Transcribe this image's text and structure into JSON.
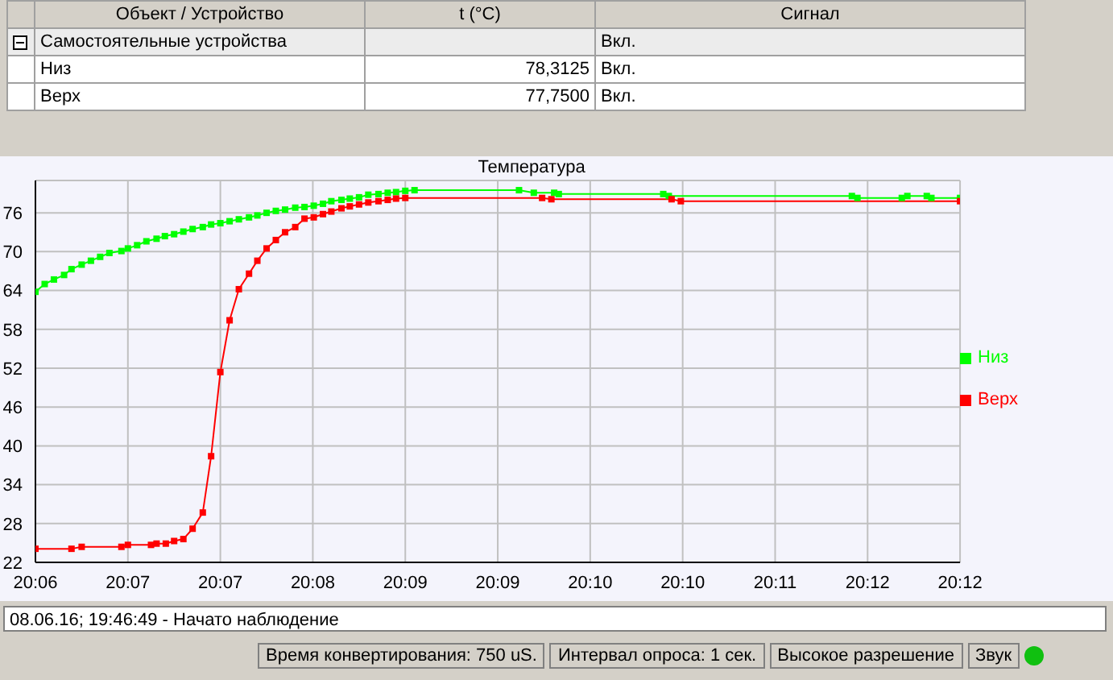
{
  "chart_data": {
    "type": "line",
    "title": "Температура",
    "xlim": [
      20.1033,
      20.2033
    ],
    "xticks": [
      {
        "value": 20.1033,
        "label": "20:06"
      },
      {
        "value": 20.1133,
        "label": "20:07"
      },
      {
        "value": 20.1233,
        "label": "20:07"
      },
      {
        "value": 20.1333,
        "label": "20:08"
      },
      {
        "value": 20.1433,
        "label": "20:09"
      },
      {
        "value": 20.1533,
        "label": "20:09"
      },
      {
        "value": 20.1633,
        "label": "20:10"
      },
      {
        "value": 20.1733,
        "label": "20:10"
      },
      {
        "value": 20.1833,
        "label": "20:11"
      },
      {
        "value": 20.1933,
        "label": "20:12"
      },
      {
        "value": 20.2033,
        "label": "20:12"
      }
    ],
    "ylim": [
      22,
      81
    ],
    "yticks": [
      22,
      28,
      34,
      40,
      46,
      52,
      58,
      64,
      70,
      76
    ],
    "grid": true,
    "legend": "right",
    "marker": "square",
    "line_style": "solid",
    "series": [
      {
        "name": "Низ",
        "color": "#00ff00",
        "x": [
          20.1033,
          20.1043,
          20.1053,
          20.1064,
          20.1072,
          20.1083,
          20.1093,
          20.1103,
          20.1113,
          20.1126,
          20.1133,
          20.1143,
          20.1153,
          20.1164,
          20.1173,
          20.1183,
          20.1193,
          20.1203,
          20.1214,
          20.1223,
          20.1233,
          20.1243,
          20.1253,
          20.1264,
          20.1273,
          20.1283,
          20.1293,
          20.1303,
          20.1314,
          20.1324,
          20.1334,
          20.1344,
          20.1353,
          20.1364,
          20.1373,
          20.1383,
          20.1393,
          20.1404,
          20.1414,
          20.1423,
          20.1433,
          20.1443,
          20.1556,
          20.1572,
          20.1594,
          20.1599,
          20.1712,
          20.1718,
          20.1916,
          20.1922,
          20.197,
          20.1976,
          20.1997,
          20.2002,
          20.2033
        ],
        "values": [
          63.8,
          65,
          65.7,
          66.4,
          67.3,
          68,
          68.6,
          69.2,
          69.8,
          70.1,
          70.5,
          71,
          71.6,
          72,
          72.4,
          72.7,
          73.1,
          73.5,
          73.8,
          74.2,
          74.4,
          74.7,
          75,
          75.3,
          75.6,
          76,
          76.3,
          76.5,
          76.8,
          76.9,
          77.1,
          77.4,
          77.8,
          78,
          78.2,
          78.4,
          78.8,
          78.9,
          79.1,
          79.2,
          79.4,
          79.5,
          79.5,
          79.1,
          79.1,
          78.9,
          78.9,
          78.6,
          78.6,
          78.3,
          78.3,
          78.6,
          78.6,
          78.3,
          78.3
        ]
      },
      {
        "name": "Верх",
        "color": "#ff0000",
        "x": [
          20.1033,
          20.1072,
          20.1083,
          20.1126,
          20.1133,
          20.1158,
          20.1164,
          20.1174,
          20.1183,
          20.1193,
          20.1203,
          20.1214,
          20.1223,
          20.1233,
          20.1243,
          20.1253,
          20.1264,
          20.1273,
          20.1283,
          20.1293,
          20.1303,
          20.1314,
          20.1324,
          20.1334,
          20.1344,
          20.1353,
          20.1364,
          20.1373,
          20.1383,
          20.1393,
          20.1404,
          20.1414,
          20.1423,
          20.1433,
          20.1581,
          20.1591,
          20.1721,
          20.1731,
          20.2033
        ],
        "values": [
          24.1,
          24.1,
          24.4,
          24.4,
          24.7,
          24.7,
          24.9,
          24.9,
          25.3,
          25.6,
          27.2,
          29.7,
          38.4,
          51.4,
          59.4,
          64.2,
          66.6,
          68.6,
          70.5,
          71.8,
          73,
          73.8,
          75.1,
          75.3,
          75.8,
          76.2,
          76.7,
          77,
          77.3,
          77.6,
          77.8,
          78,
          78.2,
          78.3,
          78.3,
          78.1,
          78.1,
          77.8,
          77.8
        ]
      }
    ],
    "annotations": [
      "Объект / Устройство",
      "t (°C)",
      "Сигнал",
      "Самостоятельные устройства",
      "Вкл.",
      "Низ",
      "78,3125",
      "Вкл.",
      "Верх",
      "77,7500",
      "Вкл.",
      "08.06.16; 19:46:49 - Начато наблюдение",
      "Время конвертирования: 750 uS.",
      "Интервал опроса: 1 сек.",
      "Высокое разрешение",
      "Звук"
    ]
  }
}
